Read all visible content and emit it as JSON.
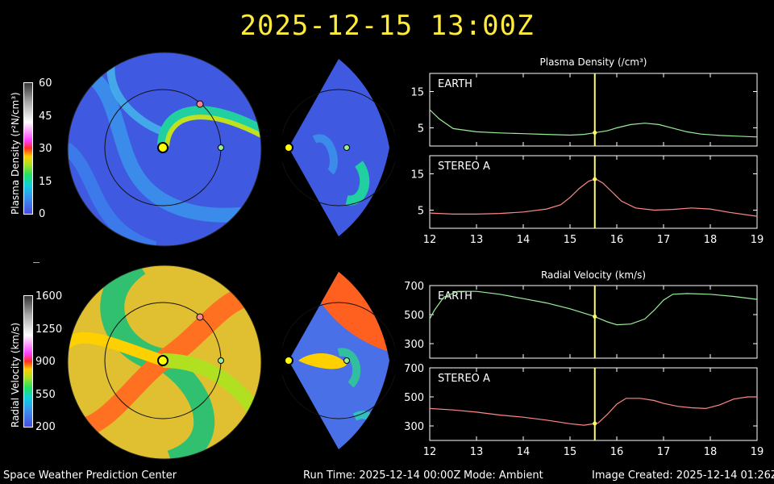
{
  "header": {
    "title": "2025-12-15 13:00Z"
  },
  "footer": {
    "org": "Space Weather Prediction Center",
    "run_time": "Run Time: 2025-12-14 00:00Z",
    "mode": "Mode: Ambient",
    "image_created": "Image Created: 2025-12-14 01:26Z"
  },
  "colorbars": {
    "density": {
      "label": "Plasma Density (r²N/cm³)",
      "ticks": [
        "60",
        "45",
        "30",
        "15",
        "0"
      ]
    },
    "velocity": {
      "label": "Radial Velocity (km/s)",
      "ticks": [
        "1600",
        "1250",
        "900",
        "550",
        "200"
      ]
    }
  },
  "colors": {
    "yellow_line": "#ffff66",
    "earth_series": "#99ee99",
    "stereo_series": "#ff8888",
    "frame": "#ffffff"
  },
  "chart_data": [
    {
      "type": "line",
      "title": "Plasma Density (/cm³)",
      "panel": "EARTH",
      "xlim": [
        12,
        19
      ],
      "ylim": [
        0,
        20
      ],
      "yticks": [
        5,
        15
      ],
      "xticks": [],
      "marker_x": 15.53,
      "series": [
        {
          "name": "EARTH",
          "x": [
            12,
            12.2,
            12.5,
            13,
            13.5,
            14,
            14.5,
            15,
            15.3,
            15.5,
            15.8,
            16,
            16.3,
            16.6,
            16.9,
            17.2,
            17.5,
            17.8,
            18.2,
            18.6,
            19
          ],
          "values": [
            10,
            7.5,
            4.8,
            3.9,
            3.6,
            3.4,
            3.2,
            3.0,
            3.2,
            3.6,
            4.2,
            5.0,
            5.9,
            6.3,
            5.9,
            4.9,
            3.9,
            3.3,
            2.9,
            2.7,
            2.5
          ]
        }
      ]
    },
    {
      "type": "line",
      "panel": "STEREO A",
      "xlim": [
        12,
        19
      ],
      "ylim": [
        0,
        20
      ],
      "yticks": [
        5,
        15
      ],
      "xticks": [
        12,
        13,
        14,
        15,
        16,
        17,
        18,
        19
      ],
      "marker_x": 15.53,
      "series": [
        {
          "name": "STEREO A",
          "x": [
            12,
            12.5,
            13,
            13.5,
            14,
            14.5,
            14.8,
            15,
            15.2,
            15.4,
            15.55,
            15.7,
            15.9,
            16.1,
            16.4,
            16.8,
            17.2,
            17.6,
            18,
            18.4,
            19
          ],
          "values": [
            4.2,
            3.9,
            3.9,
            4.1,
            4.5,
            5.3,
            6.5,
            8.5,
            11,
            13,
            13.6,
            12.5,
            10,
            7.5,
            5.6,
            5.0,
            5.2,
            5.6,
            5.3,
            4.4,
            3.3
          ]
        }
      ]
    },
    {
      "type": "line",
      "title": "Radial Velocity (km/s)",
      "panel": "EARTH",
      "xlim": [
        12,
        19
      ],
      "ylim": [
        200,
        700
      ],
      "yticks": [
        300,
        500,
        700
      ],
      "xticks": [],
      "marker_x": 15.53,
      "series": [
        {
          "name": "EARTH",
          "x": [
            12,
            12.1,
            12.3,
            12.6,
            13,
            13.5,
            14,
            14.5,
            15,
            15.5,
            15.8,
            16,
            16.3,
            16.6,
            16.8,
            17,
            17.2,
            17.5,
            18,
            18.5,
            19
          ],
          "values": [
            470,
            530,
            620,
            660,
            660,
            640,
            610,
            580,
            540,
            490,
            450,
            430,
            435,
            470,
            530,
            600,
            640,
            645,
            640,
            625,
            605
          ]
        }
      ]
    },
    {
      "type": "line",
      "panel": "STEREO A",
      "xlim": [
        12,
        19
      ],
      "ylim": [
        200,
        700
      ],
      "yticks": [
        300,
        500,
        700
      ],
      "xticks": [
        12,
        13,
        14,
        15,
        16,
        17,
        18,
        19
      ],
      "marker_x": 15.53,
      "series": [
        {
          "name": "STEREO A",
          "x": [
            12,
            12.5,
            13,
            13.5,
            14,
            14.5,
            15,
            15.3,
            15.6,
            15.8,
            16,
            16.2,
            16.5,
            16.8,
            17,
            17.3,
            17.6,
            17.9,
            18.2,
            18.5,
            18.8,
            19
          ],
          "values": [
            420,
            410,
            395,
            375,
            360,
            340,
            315,
            305,
            320,
            380,
            450,
            490,
            490,
            475,
            455,
            435,
            425,
            420,
            445,
            485,
            500,
            500
          ]
        }
      ]
    }
  ]
}
